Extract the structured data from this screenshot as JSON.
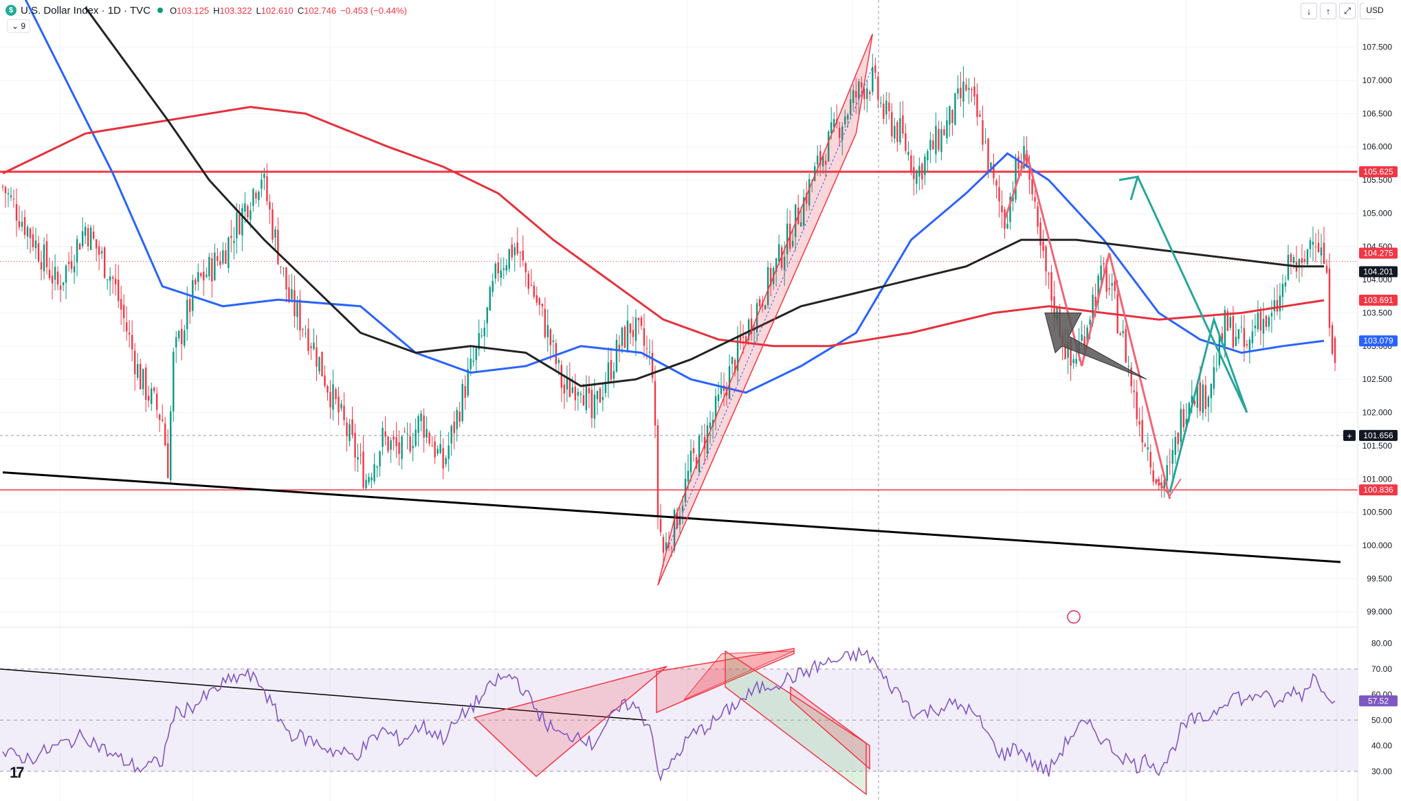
{
  "header": {
    "title": "U.S. Dollar Index · 1D · TVC",
    "open_label": "O",
    "open": "103.125",
    "high_label": "H",
    "high": "103.322",
    "low_label": "L",
    "low": "102.610",
    "close_label": "C",
    "close": "102.746",
    "change": "−0.453 (−0.44%)",
    "indicator_count": "9",
    "currency": "USD"
  },
  "colors": {
    "bull": "#089981",
    "bear": "#f23645",
    "ma_blue": "#2962ff",
    "ma_red": "#e5303b",
    "ma_black": "#222222",
    "rsi": "#7e57c2",
    "projection": "#26a69a"
  },
  "chart_data": [
    {
      "type": "candlestick",
      "title": "U.S. Dollar Index · 1D · TVC",
      "ylim": [
        98.8,
        107.9
      ],
      "y_ticks": [
        "107.500",
        "107.000",
        "106.500",
        "106.000",
        "105.500",
        "105.000",
        "104.500",
        "104.000",
        "103.500",
        "103.000",
        "102.500",
        "102.000",
        "101.500",
        "101.000",
        "100.500",
        "100.000",
        "99.500",
        "99.000"
      ],
      "price_labels": [
        {
          "value": "105.625",
          "color": "#f23645"
        },
        {
          "value": "104.275",
          "color": "#f23645"
        },
        {
          "value": "104.201",
          "color": "#131722"
        },
        {
          "value": "103.691",
          "color": "#f23645"
        },
        {
          "value": "103.079",
          "color": "#2962ff"
        },
        {
          "value": "101.656",
          "color": "#131722"
        },
        {
          "value": "100.836",
          "color": "#f23645"
        }
      ],
      "horizontal_levels": [
        105.625,
        100.836
      ],
      "close_path": [
        [
          0,
          105.4
        ],
        [
          10,
          104.7
        ],
        [
          20,
          103.9
        ],
        [
          30,
          104.8
        ],
        [
          40,
          104.0
        ],
        [
          50,
          102.5
        ],
        [
          58,
          101.9
        ],
        [
          60,
          101.2
        ],
        [
          62,
          102.8
        ],
        [
          70,
          103.9
        ],
        [
          80,
          104.4
        ],
        [
          88,
          105.1
        ],
        [
          94,
          105.6
        ],
        [
          98,
          104.8
        ],
        [
          104,
          103.7
        ],
        [
          112,
          103.1
        ],
        [
          120,
          102.2
        ],
        [
          128,
          101.4
        ],
        [
          132,
          101.0
        ],
        [
          138,
          101.6
        ],
        [
          145,
          101.4
        ],
        [
          152,
          101.9
        ],
        [
          160,
          101.2
        ],
        [
          168,
          102.4
        ],
        [
          174,
          103.1
        ],
        [
          180,
          104.2
        ],
        [
          186,
          104.5
        ],
        [
          192,
          103.9
        ],
        [
          198,
          103.2
        ],
        [
          204,
          102.3
        ],
        [
          210,
          102.5
        ],
        [
          214,
          101.9
        ],
        [
          218,
          102.4
        ],
        [
          224,
          103.0
        ],
        [
          228,
          103.3
        ],
        [
          232,
          103.1
        ],
        [
          236,
          102.7
        ],
        [
          238,
          100.5
        ],
        [
          240,
          99.9
        ],
        [
          244,
          100.3
        ],
        [
          250,
          101.2
        ],
        [
          258,
          101.9
        ],
        [
          266,
          102.8
        ],
        [
          274,
          103.6
        ],
        [
          282,
          104.3
        ],
        [
          290,
          105.1
        ],
        [
          298,
          105.9
        ],
        [
          306,
          106.5
        ],
        [
          312,
          106.9
        ],
        [
          316,
          107.0
        ],
        [
          320,
          106.5
        ],
        [
          326,
          106.2
        ],
        [
          332,
          105.6
        ],
        [
          338,
          106.0
        ],
        [
          344,
          106.4
        ],
        [
          350,
          106.9
        ],
        [
          356,
          106.2
        ],
        [
          360,
          105.4
        ],
        [
          364,
          104.9
        ],
        [
          368,
          105.6
        ],
        [
          372,
          105.9
        ],
        [
          376,
          104.6
        ],
        [
          380,
          103.9
        ],
        [
          384,
          103.3
        ],
        [
          388,
          102.7
        ],
        [
          392,
          103.1
        ],
        [
          396,
          103.7
        ],
        [
          400,
          104.1
        ],
        [
          404,
          103.6
        ],
        [
          408,
          102.9
        ],
        [
          412,
          102.0
        ],
        [
          416,
          101.5
        ],
        [
          420,
          100.9
        ],
        [
          424,
          101.1
        ],
        [
          428,
          101.9
        ],
        [
          432,
          102.4
        ],
        [
          436,
          102.2
        ],
        [
          440,
          102.6
        ],
        [
          444,
          103.3
        ],
        [
          448,
          103.2
        ],
        [
          452,
          102.9
        ],
        [
          456,
          103.5
        ],
        [
          460,
          103.3
        ],
        [
          464,
          103.7
        ],
        [
          468,
          104.3
        ],
        [
          472,
          104.1
        ],
        [
          476,
          104.8
        ],
        [
          480,
          104.27
        ],
        [
          484,
          102.75
        ]
      ],
      "moving_averages": [
        {
          "color": "#2962ff",
          "points": [
            [
              0,
              108.9
            ],
            [
              40,
              105.6
            ],
            [
              58,
              103.9
            ],
            [
              80,
              103.6
            ],
            [
              100,
              103.7
            ],
            [
              130,
              103.6
            ],
            [
              150,
              102.9
            ],
            [
              170,
              102.6
            ],
            [
              190,
              102.7
            ],
            [
              210,
              103.0
            ],
            [
              232,
              102.9
            ],
            [
              250,
              102.5
            ],
            [
              270,
              102.3
            ],
            [
              290,
              102.7
            ],
            [
              310,
              103.2
            ],
            [
              330,
              104.6
            ],
            [
              350,
              105.3
            ],
            [
              365,
              105.9
            ],
            [
              380,
              105.5
            ],
            [
              400,
              104.6
            ],
            [
              420,
              103.5
            ],
            [
              435,
              103.1
            ],
            [
              450,
              102.9
            ],
            [
              465,
              103.0
            ],
            [
              480,
              103.08
            ]
          ]
        },
        {
          "color": "#e5303b",
          "points": [
            [
              0,
              105.6
            ],
            [
              30,
              106.2
            ],
            [
              60,
              106.4
            ],
            [
              90,
              106.6
            ],
            [
              110,
              106.5
            ],
            [
              140,
              106.0
            ],
            [
              160,
              105.7
            ],
            [
              180,
              105.3
            ],
            [
              200,
              104.6
            ],
            [
              220,
              104.0
            ],
            [
              240,
              103.4
            ],
            [
              260,
              103.1
            ],
            [
              280,
              103.0
            ],
            [
              300,
              103.0
            ],
            [
              330,
              103.2
            ],
            [
              360,
              103.5
            ],
            [
              380,
              103.6
            ],
            [
              420,
              103.4
            ],
            [
              450,
              103.5
            ],
            [
              480,
              103.69
            ]
          ]
        },
        {
          "color": "#222222",
          "points": [
            [
              30,
              108.1
            ],
            [
              60,
              106.4
            ],
            [
              75,
              105.5
            ],
            [
              95,
              104.6
            ],
            [
              110,
              104.0
            ],
            [
              130,
              103.2
            ],
            [
              150,
              102.9
            ],
            [
              170,
              103.0
            ],
            [
              190,
              102.9
            ],
            [
              210,
              102.4
            ],
            [
              230,
              102.5
            ],
            [
              250,
              102.8
            ],
            [
              270,
              103.2
            ],
            [
              290,
              103.6
            ],
            [
              310,
              103.8
            ],
            [
              330,
              104.0
            ],
            [
              350,
              104.2
            ],
            [
              370,
              104.6
            ],
            [
              390,
              104.6
            ],
            [
              410,
              104.5
            ],
            [
              430,
              104.4
            ],
            [
              450,
              104.3
            ],
            [
              470,
              104.2
            ],
            [
              480,
              104.2
            ]
          ]
        }
      ],
      "annotations": [
        {
          "kind": "trendline",
          "color": "#000000",
          "from": [
            0,
            101.1
          ],
          "to": [
            486,
            99.75
          ]
        },
        {
          "kind": "channel",
          "color": "#f23645"
        },
        {
          "kind": "zigzag",
          "color": "#f23645"
        },
        {
          "kind": "projection",
          "color": "#26a69a"
        },
        {
          "kind": "arrow",
          "color": "#555555"
        }
      ]
    },
    {
      "type": "line",
      "title": "RSI",
      "ylim": [
        20,
        85
      ],
      "y_ticks": [
        "80.00",
        "70.00",
        "60.00",
        "50.00",
        "40.00",
        "30.00"
      ],
      "band": [
        30,
        70
      ],
      "current_value": "57.52",
      "series": [
        {
          "values": [
            [
              0,
              37
            ],
            [
              10,
              35
            ],
            [
              20,
              40
            ],
            [
              30,
              44
            ],
            [
              40,
              36
            ],
            [
              50,
              31
            ],
            [
              58,
              34
            ],
            [
              62,
              52
            ],
            [
              70,
              56
            ],
            [
              80,
              64
            ],
            [
              88,
              68
            ],
            [
              94,
              64
            ],
            [
              98,
              55
            ],
            [
              104,
              45
            ],
            [
              112,
              42
            ],
            [
              120,
              38
            ],
            [
              128,
              36
            ],
            [
              132,
              40
            ],
            [
              138,
              46
            ],
            [
              145,
              42
            ],
            [
              152,
              48
            ],
            [
              160,
              43
            ],
            [
              168,
              53
            ],
            [
              174,
              59
            ],
            [
              180,
              66
            ],
            [
              186,
              67
            ],
            [
              192,
              57
            ],
            [
              198,
              48
            ],
            [
              204,
              43
            ],
            [
              210,
              45
            ],
            [
              214,
              40
            ],
            [
              218,
              47
            ],
            [
              224,
              54
            ],
            [
              228,
              57
            ],
            [
              232,
              52
            ],
            [
              236,
              46
            ],
            [
              238,
              30
            ],
            [
              240,
              28
            ],
            [
              244,
              35
            ],
            [
              250,
              44
            ],
            [
              258,
              49
            ],
            [
              266,
              56
            ],
            [
              274,
              62
            ],
            [
              282,
              65
            ],
            [
              290,
              68
            ],
            [
              298,
              72
            ],
            [
              306,
              74
            ],
            [
              312,
              76
            ],
            [
              316,
              74
            ],
            [
              320,
              66
            ],
            [
              326,
              60
            ],
            [
              332,
              52
            ],
            [
              338,
              54
            ],
            [
              344,
              56
            ],
            [
              350,
              55
            ],
            [
              356,
              48
            ],
            [
              360,
              40
            ],
            [
              364,
              36
            ],
            [
              368,
              40
            ],
            [
              372,
              36
            ],
            [
              376,
              32
            ],
            [
              380,
              30
            ],
            [
              384,
              37
            ],
            [
              388,
              44
            ],
            [
              392,
              48
            ],
            [
              396,
              47
            ],
            [
              400,
              42
            ],
            [
              404,
              38
            ],
            [
              408,
              35
            ],
            [
              412,
              32
            ],
            [
              416,
              35
            ],
            [
              420,
              31
            ],
            [
              424,
              36
            ],
            [
              428,
              46
            ],
            [
              432,
              50
            ],
            [
              436,
              50
            ],
            [
              440,
              53
            ],
            [
              444,
              58
            ],
            [
              448,
              60
            ],
            [
              452,
              57
            ],
            [
              456,
              61
            ],
            [
              460,
              58
            ],
            [
              464,
              56
            ],
            [
              468,
              62
            ],
            [
              472,
              60
            ],
            [
              476,
              67
            ],
            [
              480,
              63
            ],
            [
              484,
              57.5
            ]
          ]
        }
      ]
    }
  ]
}
